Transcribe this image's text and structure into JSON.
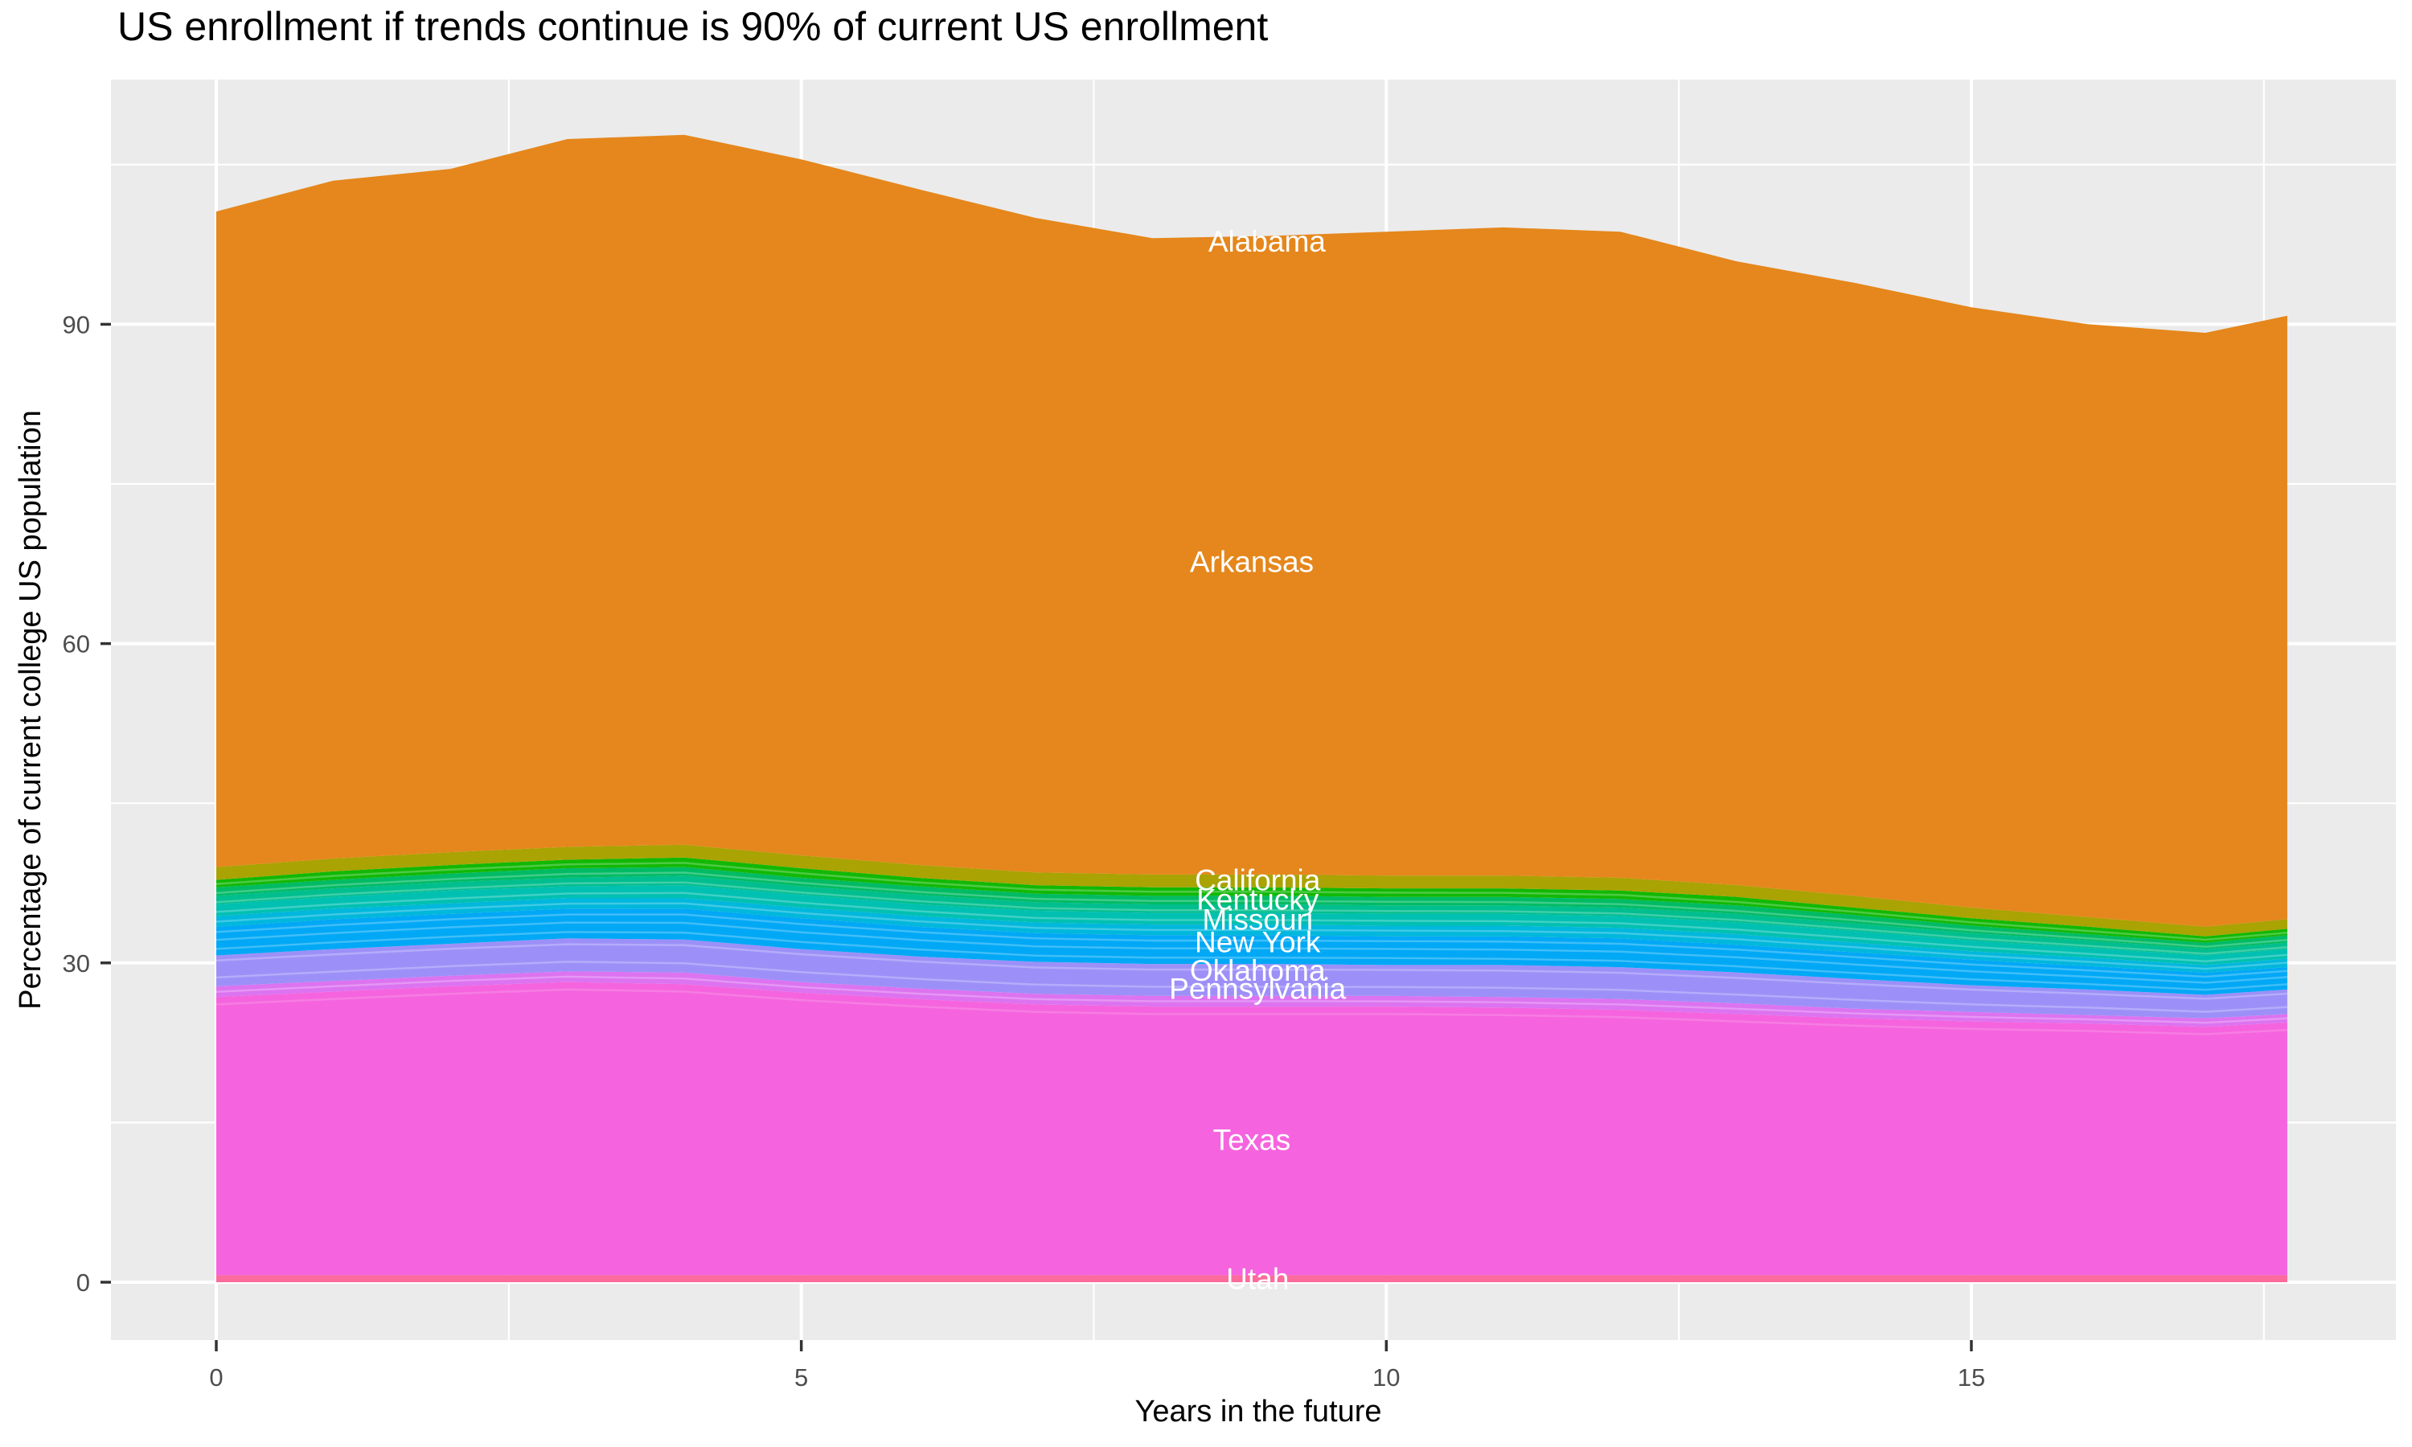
{
  "chart_data": {
    "type": "area",
    "stacked": true,
    "title": "US enrollment if trends continue is 90% of current US enrollment",
    "xlabel": "Years in the future",
    "ylabel": "Percentage of current college US population",
    "x_ticks": [
      "0",
      "5",
      "10",
      "15"
    ],
    "x_tick_values": [
      0,
      5,
      10,
      15
    ],
    "x_minor_ticks": [
      2.5,
      7.5,
      12.5,
      17.5
    ],
    "y_ticks": [
      "0",
      "30",
      "60",
      "90"
    ],
    "y_tick_values": [
      0,
      30,
      60,
      90
    ],
    "y_minor_ticks": [
      15,
      45,
      75,
      105
    ],
    "x_range_shown": [
      -0.9,
      18.66
    ],
    "y_range_shown": [
      -5.4,
      113
    ],
    "x": [
      0,
      1,
      2,
      3,
      4,
      5,
      6,
      7,
      8,
      9,
      10,
      11,
      12,
      13,
      14,
      15,
      16,
      17,
      17.7
    ],
    "layers": [
      {
        "name": "south-states-strip",
        "color": "#FB6B9B",
        "top": 0.65
      },
      {
        "name": "texas",
        "color": "#F564DE",
        "top": [
          26.8,
          27.3,
          27.8,
          28.2,
          28.0,
          27.2,
          26.6,
          26.1,
          25.9,
          25.9,
          25.9,
          25.8,
          25.6,
          25.2,
          24.8,
          24.5,
          24.3,
          24.0,
          24.4
        ]
      },
      {
        "name": "violet-pink",
        "color": "#DC73F0",
        "top": [
          27.8,
          28.3,
          28.8,
          29.2,
          29.1,
          28.2,
          27.6,
          27.1,
          26.9,
          26.9,
          26.9,
          26.8,
          26.6,
          26.2,
          25.7,
          25.4,
          25.1,
          24.8,
          25.2
        ]
      },
      {
        "name": "lavender",
        "color": "#9C90F8",
        "top": [
          30.7,
          31.3,
          31.8,
          32.3,
          32.2,
          31.3,
          30.6,
          30.1,
          29.9,
          29.9,
          29.8,
          29.8,
          29.6,
          29.1,
          28.5,
          27.9,
          27.5,
          27.0,
          27.5
        ]
      },
      {
        "name": "azure-blue",
        "color": "#00A8F6",
        "top": [
          33.4,
          34.1,
          34.6,
          35.1,
          35.1,
          34.2,
          33.4,
          32.8,
          32.6,
          32.6,
          32.5,
          32.5,
          32.3,
          31.7,
          31.0,
          30.3,
          29.7,
          29.1,
          29.6
        ]
      },
      {
        "name": "cyan",
        "color": "#00B7DC",
        "top": [
          34.4,
          35.1,
          35.6,
          36.1,
          36.1,
          35.2,
          34.4,
          33.8,
          33.6,
          33.6,
          33.5,
          33.5,
          33.3,
          32.7,
          31.9,
          31.1,
          30.5,
          29.8,
          30.4
        ]
      },
      {
        "name": "teal",
        "color": "#00C0B2",
        "top": [
          35.5,
          36.2,
          36.8,
          37.2,
          37.3,
          36.4,
          35.5,
          34.9,
          34.7,
          34.7,
          34.6,
          34.6,
          34.4,
          33.8,
          33.0,
          32.1,
          31.4,
          30.7,
          31.3
        ]
      },
      {
        "name": "sea-green",
        "color": "#00BE8E",
        "top": [
          36.3,
          37.0,
          37.6,
          38.0,
          38.2,
          37.2,
          36.4,
          35.7,
          35.5,
          35.5,
          35.4,
          35.4,
          35.2,
          34.6,
          33.7,
          32.8,
          32.1,
          31.3,
          31.9
        ]
      },
      {
        "name": "spring-green",
        "color": "#00BB63",
        "top": [
          37.1,
          37.8,
          38.4,
          38.9,
          39.0,
          38.0,
          37.2,
          36.5,
          36.3,
          36.3,
          36.2,
          36.2,
          36.0,
          35.4,
          34.5,
          33.5,
          32.7,
          31.9,
          32.6
        ]
      },
      {
        "name": "green",
        "color": "#12B805",
        "top": [
          37.8,
          38.6,
          39.2,
          39.7,
          39.9,
          38.9,
          38.0,
          37.3,
          37.1,
          37.1,
          37.0,
          37.0,
          36.8,
          36.2,
          35.2,
          34.2,
          33.4,
          32.5,
          33.2
        ]
      },
      {
        "name": "olive",
        "color": "#A9A303",
        "top": [
          39.0,
          39.8,
          40.4,
          40.9,
          41.1,
          40.1,
          39.2,
          38.5,
          38.3,
          38.3,
          38.2,
          38.2,
          38.0,
          37.3,
          36.3,
          35.2,
          34.3,
          33.4,
          34.1
        ]
      },
      {
        "name": "arkansas-orange",
        "color": "#E5871C",
        "top": [
          100.6,
          103.5,
          104.6,
          107.4,
          107.8,
          105.5,
          102.7,
          100.0,
          98.1,
          98.3,
          98.7,
          99.1,
          98.7,
          95.9,
          93.9,
          91.6,
          90.0,
          89.2,
          90.8
        ]
      }
    ],
    "state_labels": [
      {
        "text": "Alabama",
        "x": 8.98,
        "y": 97.8
      },
      {
        "text": "Arkansas",
        "x": 8.85,
        "y": 67.7
      },
      {
        "text": "California",
        "x": 8.9,
        "y": 37.8
      },
      {
        "text": "Kentucky",
        "x": 8.9,
        "y": 36.0
      },
      {
        "text": "Missouri",
        "x": 8.9,
        "y": 34.1
      },
      {
        "text": "New York",
        "x": 8.9,
        "y": 32.0
      },
      {
        "text": "Oklahoma",
        "x": 8.9,
        "y": 29.3
      },
      {
        "text": "Pennsylvania",
        "x": 8.9,
        "y": 27.6
      },
      {
        "text": "Texas",
        "x": 8.85,
        "y": 13.4
      },
      {
        "text": "Utah",
        "x": 8.9,
        "y": 0.35
      }
    ],
    "separators": {
      "between": [
        "texas",
        "olive"
      ],
      "fracs": [
        0.04,
        0.15,
        0.28,
        0.37,
        0.44,
        0.5,
        0.58,
        0.655,
        0.73,
        0.8,
        0.87
      ],
      "inside_texas_offset": -0.7
    },
    "colors": {
      "panel": "#EBEBEB",
      "grid": "#FFFFFF",
      "tick_mark": "#333333",
      "tick_label": "#4D4D4D",
      "area_label_text": "#FFFFFF",
      "title_text": "#000000"
    },
    "legend": "none",
    "grid": "on"
  }
}
